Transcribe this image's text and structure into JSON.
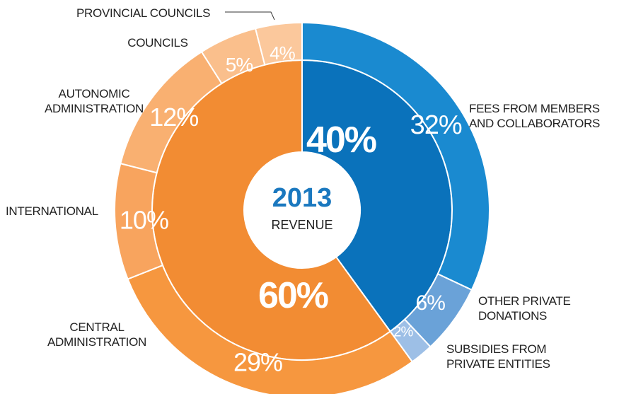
{
  "chart_data": {
    "type": "nested-donut",
    "center_title": "2013",
    "center_subtitle": "REVENUE",
    "rings": [
      {
        "values": [
          40,
          60
        ],
        "value_labels": [
          "40%",
          "60%"
        ],
        "colors": [
          "#0a72bb",
          "#f28c33"
        ]
      },
      {
        "categories": [
          "FEES FROM MEMBERS\nAND COLLABORATORS",
          "OTHER PRIVATE\nDONATIONS",
          "SUBSIDIES FROM\nPRIVATE ENTITIES",
          "CENTRAL\nADMINISTRATION",
          "INTERNATIONAL",
          "AUTONOMIC\nADMINISTRATION",
          "COUNCILS",
          "PROVINCIAL COUNCILS"
        ],
        "values": [
          32,
          6,
          2,
          29,
          10,
          12,
          5,
          4
        ],
        "value_labels": [
          "32%",
          "6%",
          "2%",
          "29%",
          "10%",
          "12%",
          "5%",
          "4%"
        ],
        "colors": [
          "#1a8ad0",
          "#6aa2d8",
          "#9dbfe6",
          "#f6973f",
          "#f8a45e",
          "#f9b071",
          "#fabf8c",
          "#fbc89c"
        ]
      }
    ]
  }
}
